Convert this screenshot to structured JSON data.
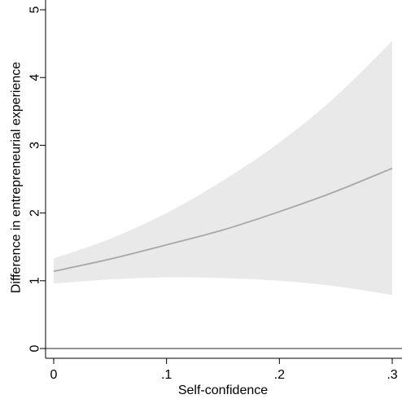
{
  "chart_data": {
    "type": "line",
    "title": "",
    "xlabel": "Self-confidence",
    "ylabel": "Difference in entrepreneurial experience",
    "xlim": [
      0,
      0.3
    ],
    "ylim": [
      0,
      5
    ],
    "xticks": [
      {
        "value": 0,
        "label": "0"
      },
      {
        "value": 0.1,
        "label": ".1"
      },
      {
        "value": 0.2,
        "label": ".2"
      },
      {
        "value": 0.3,
        "label": ".3"
      }
    ],
    "yticks": [
      {
        "value": 0,
        "label": "0"
      },
      {
        "value": 1,
        "label": "1"
      },
      {
        "value": 2,
        "label": "2"
      },
      {
        "value": 3,
        "label": "3"
      },
      {
        "value": 4,
        "label": "4"
      },
      {
        "value": 5,
        "label": "5"
      }
    ],
    "reference_line_y": 0,
    "grid": false,
    "series": [
      {
        "x": [
          0,
          0.05,
          0.1,
          0.15,
          0.2,
          0.25,
          0.3
        ],
        "y": [
          1.14,
          1.32,
          1.53,
          1.75,
          2.02,
          2.32,
          2.66
        ],
        "ci_lower": [
          0.96,
          1.02,
          1.05,
          1.04,
          1.0,
          0.92,
          0.79
        ],
        "ci_upper": [
          1.33,
          1.62,
          2.0,
          2.48,
          3.04,
          3.72,
          4.54
        ]
      }
    ],
    "colors": {
      "line": "#a8a8a8",
      "band": "#e9e9e9",
      "axis": "#000000",
      "reference": "#555555"
    }
  }
}
